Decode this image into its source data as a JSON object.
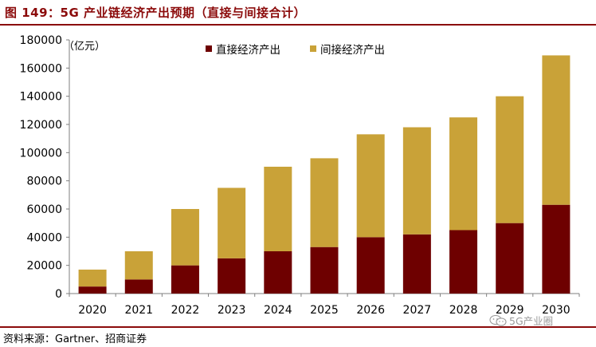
{
  "header": {
    "title": "图 149：5G 产业链经济产出预期（直接与间接合计）"
  },
  "footer": {
    "source": "资料来源：Gartner、招商证券",
    "watermark": "5G产业圈",
    "watermark_icon": "wechat-icon"
  },
  "colors": {
    "title": "#8B0A0A",
    "direct": "#6E0000",
    "indirect": "#C9A238",
    "axis": "#7f7f7f"
  },
  "chart_data": {
    "type": "bar",
    "stacked": true,
    "unit_label": "（亿元）",
    "categories": [
      "2020",
      "2021",
      "2022",
      "2023",
      "2024",
      "2025",
      "2026",
      "2027",
      "2028",
      "2029",
      "2030"
    ],
    "series": [
      {
        "name": "直接经济产出",
        "values": [
          5000,
          10000,
          20000,
          25000,
          30000,
          33000,
          40000,
          42000,
          45000,
          50000,
          63000
        ]
      },
      {
        "name": "间接经济产出",
        "values": [
          12000,
          20000,
          40000,
          50000,
          60000,
          63000,
          73000,
          76000,
          80000,
          90000,
          106000
        ]
      }
    ],
    "ylim": [
      0,
      180000
    ],
    "yticks": [
      "0",
      "20000",
      "40000",
      "60000",
      "80000",
      "100000",
      "120000",
      "140000",
      "160000",
      "180000"
    ],
    "grid": false,
    "legend_position": "top-center"
  }
}
